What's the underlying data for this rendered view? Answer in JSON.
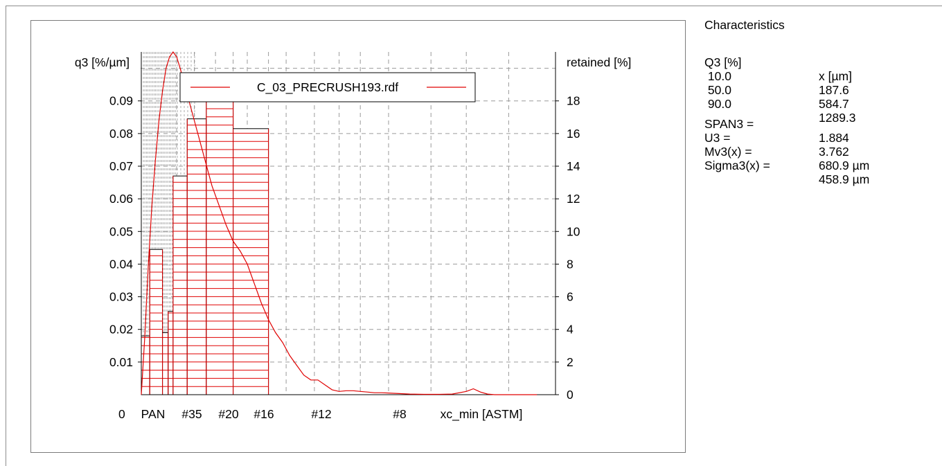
{
  "characteristics": {
    "title": "Characteristics",
    "header": [
      "Q3 [%]",
      "x [µm]"
    ],
    "rows": [
      [
        " 10.0",
        "187.6"
      ],
      [
        " 50.0",
        "584.7"
      ],
      [
        " 90.0",
        "1289.3"
      ]
    ],
    "stats": [
      [
        "SPAN3 =",
        "1.884"
      ],
      [
        "U3 =",
        "3.762"
      ],
      [
        "Mv3(x) =",
        "680.9 µm"
      ],
      [
        "Sigma3(x) =",
        "458.9 µm"
      ]
    ]
  },
  "chart_data": {
    "type": "bar",
    "legend_entry": "C_03_PRECRUSH193.rdf",
    "legend_placement": "top-center",
    "ylabel_left": "q3 [%/µm]",
    "ylabel_right": "retained [%]",
    "xlabel": "xc_min [ASTM]",
    "x_axis_origin_label": "0",
    "x_ticks": [
      {
        "label": "PAN",
        "pos": 0
      },
      {
        "label": "#35",
        "pos": 0.5
      },
      {
        "label": "#20",
        "pos": 1.05
      },
      {
        "label": "#16",
        "pos": 1.5
      },
      {
        "label": "#12",
        "pos": 2.45
      },
      {
        "label": "#8",
        "pos": 3.5
      }
    ],
    "x_range": [
      -0.25,
      5.75
    ],
    "ylim_left": [
      0,
      0.105
    ],
    "yticks_left": [
      0.01,
      0.02,
      0.03,
      0.04,
      0.05,
      0.06,
      0.07,
      0.08,
      0.09
    ],
    "ylim_right": [
      0,
      21
    ],
    "yticks_right": [
      0,
      2,
      4,
      6,
      8,
      10,
      12,
      14,
      16,
      18
    ],
    "grid": true,
    "bars_retained_percent": [
      {
        "x0": 0.0,
        "x1": 0.12,
        "value": 3.6
      },
      {
        "x0": 0.12,
        "x1": 0.3,
        "value": 8.9
      },
      {
        "x0": 0.3,
        "x1": 0.38,
        "value": 3.8
      },
      {
        "x0": 0.38,
        "x1": 0.45,
        "value": 5.1
      },
      {
        "x0": 0.45,
        "x1": 0.65,
        "value": 13.4
      },
      {
        "x0": 0.65,
        "x1": 0.92,
        "value": 16.9
      },
      {
        "x0": 0.92,
        "x1": 1.3,
        "value": 19.4
      },
      {
        "x0": 1.3,
        "x1": 1.8,
        "value": 16.3
      }
    ],
    "series": [
      {
        "name": "C_03_PRECRUSH193.rdf",
        "x": [
          0.0,
          0.05,
          0.1,
          0.15,
          0.2,
          0.25,
          0.3,
          0.35,
          0.4,
          0.45,
          0.5,
          0.55,
          0.6,
          0.7,
          0.8,
          0.9,
          1.0,
          1.1,
          1.2,
          1.3,
          1.4,
          1.5,
          1.6,
          1.7,
          1.8,
          1.9,
          2.0,
          2.1,
          2.2,
          2.3,
          2.4,
          2.5,
          2.6,
          2.7,
          2.8,
          2.9,
          3.0,
          3.1,
          3.2,
          3.3,
          3.4,
          3.5,
          3.6,
          3.7,
          3.8,
          4.0,
          4.2,
          4.4,
          4.6,
          4.7,
          4.8,
          4.9,
          5.0,
          5.2,
          5.4,
          5.6
        ],
        "values": [
          0.0,
          0.018,
          0.04,
          0.058,
          0.072,
          0.084,
          0.093,
          0.1,
          0.1035,
          0.105,
          0.1035,
          0.1,
          0.096,
          0.088,
          0.08,
          0.072,
          0.064,
          0.058,
          0.052,
          0.047,
          0.044,
          0.04,
          0.034,
          0.028,
          0.023,
          0.019,
          0.016,
          0.012,
          0.009,
          0.006,
          0.0045,
          0.0045,
          0.003,
          0.0015,
          0.001,
          0.0012,
          0.0012,
          0.001,
          0.0008,
          0.0006,
          0.0006,
          0.0005,
          0.0004,
          0.0003,
          0.0002,
          0.0001,
          0.0001,
          0.0002,
          0.001,
          0.0018,
          0.0008,
          0.0002,
          0.0,
          0.0,
          0.0,
          0.0
        ]
      }
    ]
  }
}
